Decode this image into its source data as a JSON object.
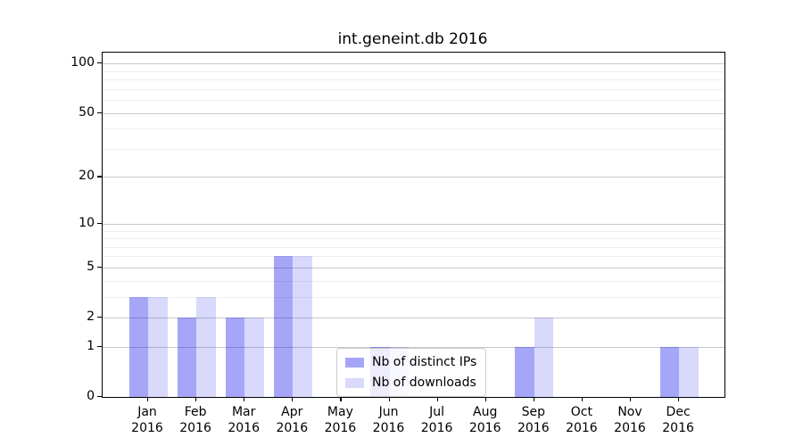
{
  "chart_data": {
    "type": "bar",
    "title": "int.geneint.db 2016",
    "categories": [
      "Jan 2016",
      "Feb 2016",
      "Mar 2016",
      "Apr 2016",
      "May 2016",
      "Jun 2016",
      "Jul 2016",
      "Aug 2016",
      "Sep 2016",
      "Oct 2016",
      "Nov 2016",
      "Dec 2016"
    ],
    "series": [
      {
        "name": "Nb of distinct IPs",
        "color": "#0000ee",
        "alpha": 0.35,
        "values": [
          3,
          2,
          2,
          6,
          0,
          1,
          0,
          0,
          1,
          0,
          0,
          1
        ]
      },
      {
        "name": "Nb of downloads",
        "color": "#0000ee",
        "alpha": 0.15,
        "values": [
          3,
          3,
          2,
          6,
          0,
          1,
          0,
          0,
          2,
          0,
          0,
          1
        ]
      }
    ],
    "xlabel": "",
    "ylabel": "",
    "yscale": "log1p",
    "ylim": [
      0,
      117
    ],
    "ytick_labels": [
      "100",
      "50",
      "20",
      "10",
      "5",
      "2",
      "1",
      "0"
    ],
    "ytick_values": [
      100,
      50,
      20,
      10,
      5,
      2,
      1,
      0
    ],
    "major_grid_values": [
      100,
      50,
      20,
      10,
      5,
      2,
      1
    ],
    "minor_grid_values": [
      90,
      80,
      70,
      60,
      40,
      30,
      9,
      8,
      7,
      6,
      4,
      3
    ],
    "grid": true,
    "legend_position": "lower center, inside plot",
    "colors": {
      "major_grid": "#c9c9c9",
      "minor_grid": "#efefef",
      "spine": "#000000",
      "background": "#ffffff",
      "bar_distinct_ips_rendered": "#a6a6f9",
      "bar_downloads_rendered": "#d9d9fc",
      "legend_border": "#cccccc"
    }
  }
}
